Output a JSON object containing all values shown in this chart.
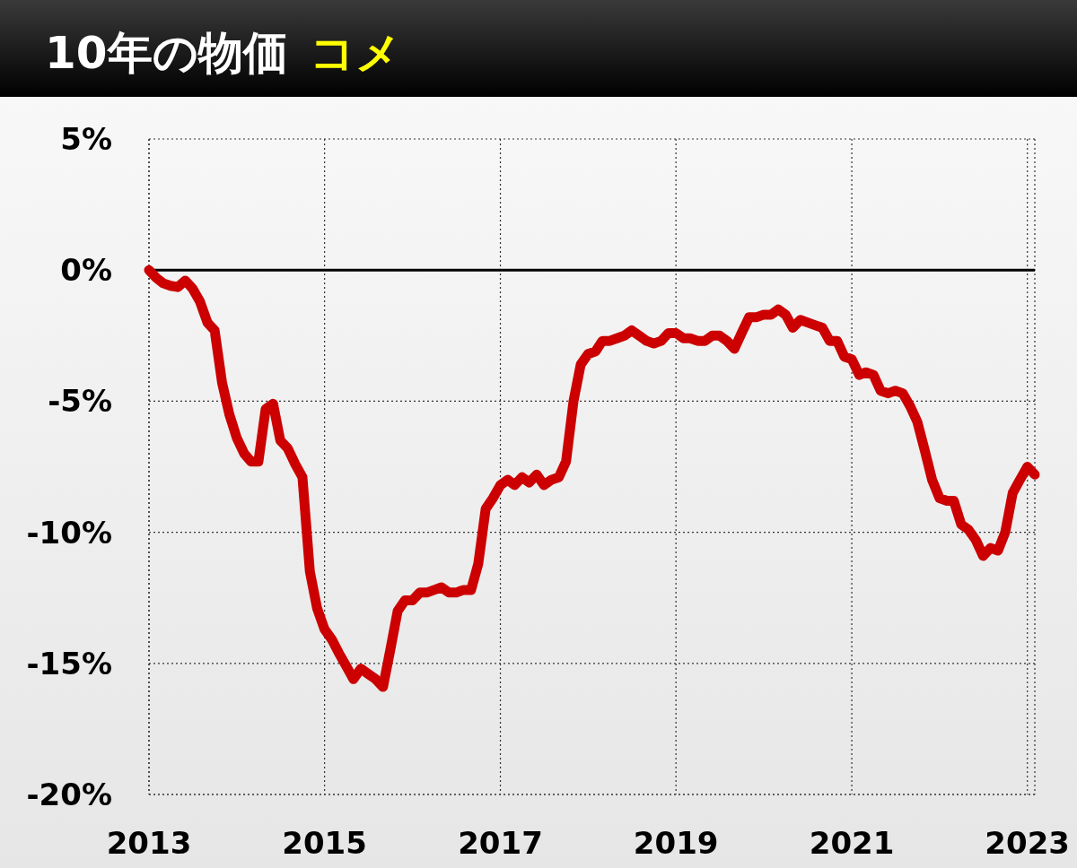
{
  "chart_data": {
    "type": "line",
    "title": "10年の物価",
    "subtitle": "コメ",
    "x": [
      "2013-01",
      "2013-02",
      "2013-03",
      "2013-04",
      "2013-05",
      "2013-06",
      "2013-07",
      "2013-08",
      "2013-09",
      "2013-10",
      "2013-11",
      "2013-12",
      "2014-01",
      "2014-02",
      "2014-03",
      "2014-04",
      "2014-05",
      "2014-06",
      "2014-07",
      "2014-08",
      "2014-09",
      "2014-10",
      "2014-11",
      "2014-12",
      "2015-01",
      "2015-02",
      "2015-03",
      "2015-04",
      "2015-05",
      "2015-06",
      "2015-07",
      "2015-08",
      "2015-09",
      "2015-10",
      "2015-11",
      "2015-12",
      "2016-01",
      "2016-02",
      "2016-03",
      "2016-04",
      "2016-05",
      "2016-06",
      "2016-07",
      "2016-08",
      "2016-09",
      "2016-10",
      "2016-11",
      "2016-12",
      "2017-01",
      "2017-02",
      "2017-03",
      "2017-04",
      "2017-05",
      "2017-06",
      "2017-07",
      "2017-08",
      "2017-09",
      "2017-10",
      "2017-11",
      "2017-12",
      "2018-01",
      "2018-02",
      "2018-03",
      "2018-04",
      "2018-05",
      "2018-06",
      "2018-07",
      "2018-08",
      "2018-09",
      "2018-10",
      "2018-11",
      "2018-12",
      "2019-01",
      "2019-02",
      "2019-03",
      "2019-04",
      "2019-05",
      "2019-06",
      "2019-07",
      "2019-08",
      "2019-09",
      "2019-10",
      "2019-11",
      "2019-12",
      "2020-01",
      "2020-02",
      "2020-03",
      "2020-04",
      "2020-05",
      "2020-06",
      "2020-07",
      "2020-08",
      "2020-09",
      "2020-10",
      "2020-11",
      "2020-12",
      "2021-01",
      "2021-02",
      "2021-03",
      "2021-04",
      "2021-05",
      "2021-06",
      "2021-07",
      "2021-08",
      "2021-09",
      "2021-10",
      "2021-11",
      "2021-12",
      "2022-01",
      "2022-02",
      "2022-03",
      "2022-04",
      "2022-05",
      "2022-06",
      "2022-07",
      "2022-08",
      "2022-09",
      "2022-10",
      "2022-11",
      "2022-12",
      "2023-01",
      "2023-02"
    ],
    "series": [
      {
        "color": "#cc0000",
        "values": [
          0,
          -0.3,
          -0.5,
          -0.6,
          -0.65,
          -0.4,
          -0.7,
          -1.2,
          -2.0,
          -2.3,
          -4.3,
          -5.5,
          -6.4,
          -7.0,
          -7.3,
          -7.3,
          -5.3,
          -5.1,
          -6.5,
          -6.8,
          -7.4,
          -7.9,
          -11.5,
          -12.9,
          -13.7,
          -14.1,
          -14.6,
          -15.1,
          -15.6,
          -15.2,
          -15.4,
          -15.6,
          -15.9,
          -14.5,
          -13.0,
          -12.6,
          -12.6,
          -12.3,
          -12.3,
          -12.2,
          -12.1,
          -12.3,
          -12.3,
          -12.2,
          -12.2,
          -11.2,
          -9.1,
          -8.7,
          -8.2,
          -8.0,
          -8.2,
          -7.9,
          -8.1,
          -7.8,
          -8.2,
          -8.0,
          -7.9,
          -7.3,
          -5.0,
          -3.6,
          -3.2,
          -3.1,
          -2.7,
          -2.7,
          -2.6,
          -2.5,
          -2.3,
          -2.5,
          -2.7,
          -2.8,
          -2.7,
          -2.4,
          -2.4,
          -2.6,
          -2.6,
          -2.7,
          -2.7,
          -2.5,
          -2.5,
          -2.7,
          -3.0,
          -2.4,
          -1.8,
          -1.8,
          -1.7,
          -1.7,
          -1.5,
          -1.7,
          -2.2,
          -1.9,
          -2.0,
          -2.1,
          -2.2,
          -2.7,
          -2.7,
          -3.3,
          -3.4,
          -4.0,
          -3.9,
          -4.0,
          -4.6,
          -4.7,
          -4.6,
          -4.7,
          -5.2,
          -5.8,
          -6.9,
          -8.0,
          -8.7,
          -8.8,
          -8.8,
          -9.7,
          -9.9,
          -10.3,
          -10.9,
          -10.6,
          -10.7,
          -10.0,
          -8.5,
          -8.0,
          -7.5,
          -7.8
        ]
      }
    ],
    "xlim": [
      "2013-01",
      "2023-02"
    ],
    "xticks": [
      {
        "value": "2013",
        "label": "2013"
      },
      {
        "value": "2015",
        "label": "2015"
      },
      {
        "value": "2017",
        "label": "2017"
      },
      {
        "value": "2019",
        "label": "2019"
      },
      {
        "value": "2021",
        "label": "2021"
      },
      {
        "value": "2023",
        "label": "2023"
      }
    ],
    "ylim": [
      -20,
      5
    ],
    "yticks": [
      {
        "value": -20,
        "label": "-20%"
      },
      {
        "value": -15,
        "label": "-15%"
      },
      {
        "value": -10,
        "label": "-10%"
      },
      {
        "value": -5,
        "label": "-5%"
      },
      {
        "value": 0,
        "label": "0%"
      },
      {
        "value": 5,
        "label": "5%"
      }
    ],
    "grid": true,
    "ref_lines": [
      {
        "axis": "y",
        "value": 0,
        "color": "#000000",
        "line_style": "solid"
      }
    ]
  }
}
